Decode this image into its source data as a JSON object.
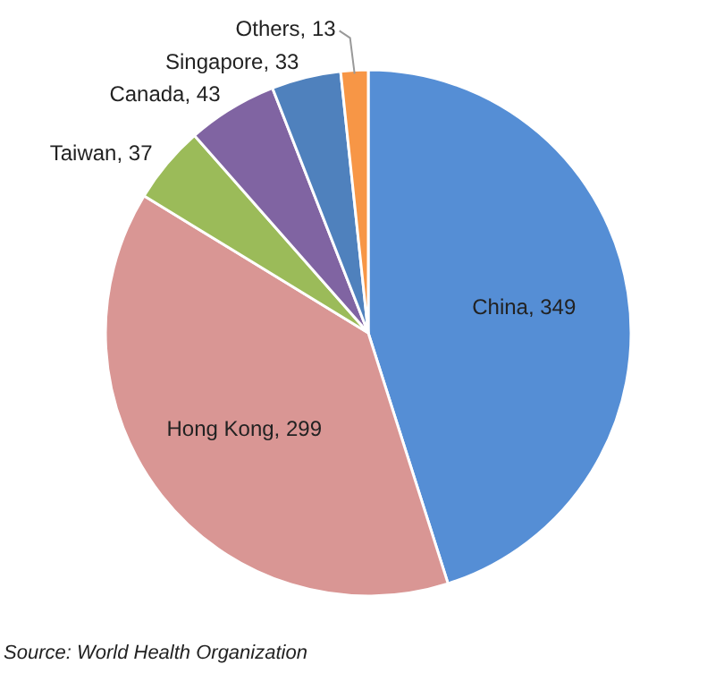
{
  "chart_data": {
    "type": "pie",
    "categories": [
      "China",
      "Hong Kong",
      "Taiwan",
      "Canada",
      "Singapore",
      "Others"
    ],
    "values": [
      349,
      299,
      37,
      43,
      33,
      13
    ],
    "colors": [
      "#558ed5",
      "#d99694",
      "#9bbb59",
      "#8064a2",
      "#4f81bd",
      "#f79646"
    ],
    "value_labels": [
      ", 349",
      ", 299",
      ", 37",
      ", 43",
      ", 33",
      ", 13"
    ],
    "annotations": [
      "Source: World Health Organization"
    ]
  }
}
